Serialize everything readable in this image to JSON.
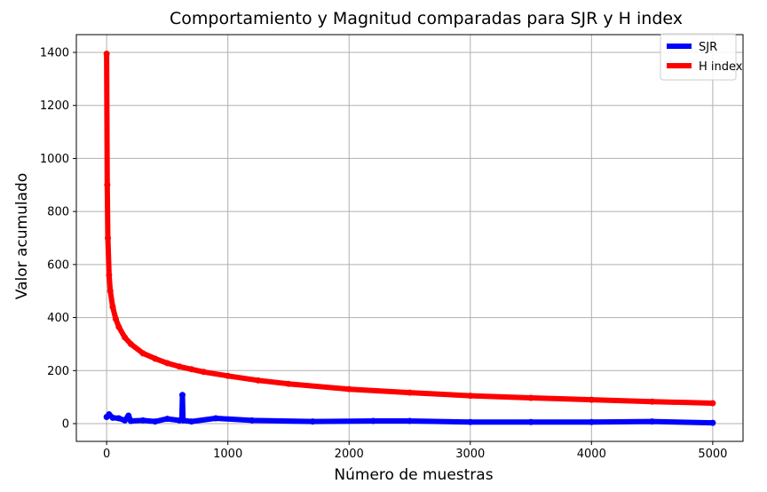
{
  "chart_data": {
    "type": "line",
    "title": "Comportamiento y Magnitud comparadas para SJR y H index",
    "xlabel": "Número de muestras",
    "ylabel": "Valor acumulado",
    "xlim": [
      -250,
      5250
    ],
    "ylim": [
      -67,
      1467
    ],
    "xticks": [
      0,
      1000,
      2000,
      3000,
      4000,
      5000
    ],
    "yticks": [
      0,
      200,
      400,
      600,
      800,
      1000,
      1200,
      1400
    ],
    "xtick_labels": [
      "0",
      "1000",
      "2000",
      "3000",
      "4000",
      "5000"
    ],
    "ytick_labels": [
      "0",
      "200",
      "400",
      "600",
      "800",
      "1000",
      "1200",
      "1400"
    ],
    "grid": true,
    "legend_position": "top-right",
    "series": [
      {
        "name": "SJR",
        "color": "#0000ff",
        "x": [
          0,
          20,
          50,
          100,
          150,
          180,
          200,
          300,
          400,
          500,
          600,
          620,
          625,
          630,
          700,
          900,
          1200,
          1700,
          2200,
          2500,
          3000,
          3500,
          4000,
          4500,
          5000
        ],
        "y": [
          25,
          35,
          22,
          20,
          12,
          30,
          10,
          12,
          8,
          18,
          12,
          15,
          108,
          12,
          8,
          20,
          12,
          8,
          10,
          10,
          6,
          6,
          6,
          8,
          3
        ]
      },
      {
        "name": "H index",
        "color": "#ff0000",
        "x": [
          0,
          5,
          10,
          20,
          30,
          50,
          75,
          100,
          150,
          200,
          300,
          400,
          500,
          600,
          700,
          800,
          1000,
          1250,
          1500,
          2000,
          2500,
          3000,
          3500,
          4000,
          4500,
          5000
        ],
        "y": [
          1395,
          900,
          700,
          560,
          500,
          440,
          395,
          365,
          325,
          300,
          265,
          245,
          228,
          215,
          205,
          195,
          180,
          163,
          150,
          130,
          117,
          105,
          97,
          90,
          83,
          77
        ]
      }
    ]
  }
}
